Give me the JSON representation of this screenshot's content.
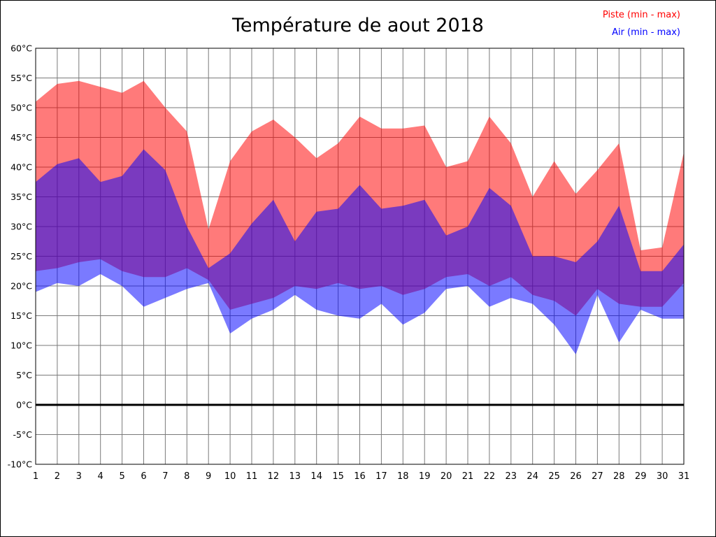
{
  "title": "Température de aout 2018",
  "legend": {
    "piste": {
      "label": "Piste (min - max)",
      "color": "#ff0000"
    },
    "air": {
      "label": "Air (min - max)",
      "color": "#0000ff"
    }
  },
  "chart_data": {
    "type": "area",
    "title": "Température de aout 2018",
    "x": [
      1,
      2,
      3,
      4,
      5,
      6,
      7,
      8,
      9,
      10,
      11,
      12,
      13,
      14,
      15,
      16,
      17,
      18,
      19,
      20,
      21,
      22,
      23,
      24,
      25,
      26,
      27,
      28,
      29,
      30,
      31
    ],
    "ylim": [
      -10,
      60
    ],
    "ytick_step": 5,
    "y_unit": "°C",
    "grid": true,
    "grid_color": "#7a7a7a",
    "legend_position": "top-right",
    "zero_line": {
      "value": 0,
      "color": "#000000",
      "width": 3
    },
    "series": [
      {
        "name": "Piste (min - max)",
        "kind": "range-band",
        "color": "#ff0000",
        "fill": "rgba(255,0,0,0.52)",
        "max": [
          51,
          54,
          54.5,
          53.5,
          52.5,
          54.5,
          50,
          46,
          29.5,
          41,
          46,
          48,
          45,
          41.5,
          44,
          48.5,
          46.5,
          46.5,
          47,
          40,
          41,
          48.5,
          44,
          35,
          41,
          35.5,
          39.5,
          44,
          26,
          26.5,
          42.5
        ],
        "min": [
          22.5,
          23,
          24,
          24.5,
          22.5,
          21.5,
          21.5,
          23,
          21,
          16,
          17,
          18,
          20,
          19.5,
          20.5,
          19.5,
          20,
          18.5,
          19.5,
          21.5,
          22,
          20,
          21.5,
          18.5,
          17.5,
          15,
          19.5,
          17,
          16.5,
          16.5,
          20.5
        ]
      },
      {
        "name": "Air (min - max)",
        "kind": "range-band",
        "color": "#0000ff",
        "fill": "rgba(0,0,255,0.52)",
        "max": [
          37.5,
          40.5,
          41.5,
          37.5,
          38.5,
          43,
          39.5,
          30,
          23,
          25.5,
          30.5,
          34.5,
          27.5,
          32.5,
          33,
          37,
          33,
          33.5,
          34.5,
          28.5,
          30,
          36.5,
          33.5,
          25,
          25,
          24,
          27.5,
          33.5,
          22.5,
          22.5,
          27
        ],
        "min": [
          19,
          20.5,
          20,
          22,
          20,
          16.5,
          18,
          19.5,
          20.5,
          12,
          14.5,
          16,
          18.5,
          16,
          15,
          14.5,
          17,
          13.5,
          15.5,
          19.5,
          20,
          16.5,
          18,
          17,
          13.5,
          8.5,
          18.5,
          10.5,
          16,
          14.5,
          14.5
        ]
      }
    ]
  }
}
